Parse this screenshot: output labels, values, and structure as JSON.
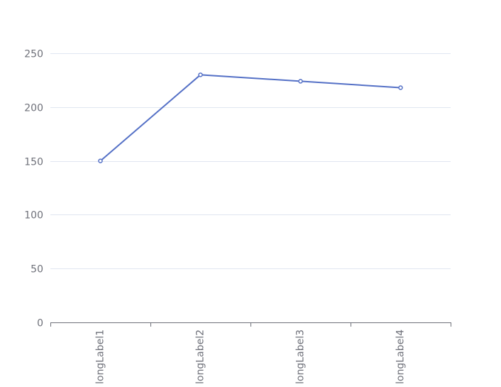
{
  "chart_data": {
    "type": "line",
    "title": "",
    "xlabel": "",
    "ylabel": "",
    "categories": [
      "longLabel1",
      "longLabel2",
      "longLabel3",
      "longLabel4"
    ],
    "series": [
      {
        "values": [
          150,
          230,
          224,
          218
        ]
      }
    ],
    "ylim": [
      0,
      250
    ],
    "yticks": [
      0,
      50,
      100,
      150,
      200,
      250
    ],
    "grid": true,
    "legend": "none",
    "colors": {
      "line": "#5470c6",
      "grid": "#e0e6f1",
      "axis": "#6e7079",
      "label": "#6e7079",
      "marker_fill": "#ffffff"
    }
  }
}
